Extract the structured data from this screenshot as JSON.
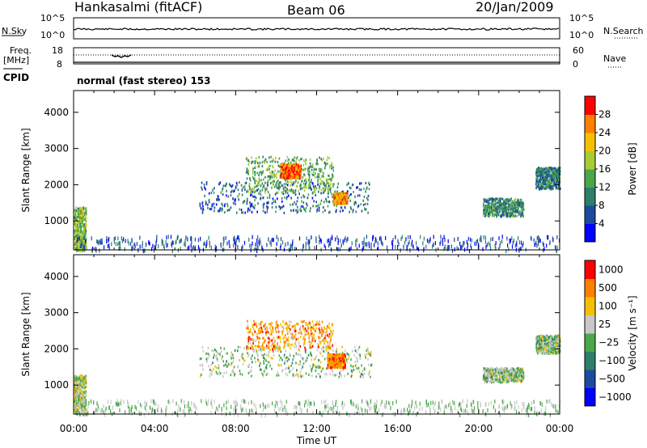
{
  "header": {
    "radar": "Hankasalmi (fitACF)",
    "beam": "Beam 06",
    "date": "20/Jan/2009",
    "program": "normal (fast stereo) 153"
  },
  "params": {
    "nsky_label": "N.Sky",
    "nsearch_label": "N.Search",
    "freq_label_1": "Freq.",
    "freq_label_2": "[MHz]",
    "nave_label": "Nave",
    "cpid_label": "CPID",
    "left_top_tick": "10^5",
    "left_bottom_tick": "10^0",
    "right_top_tick": "10^5",
    "right_bottom_tick": "10^0",
    "freq_top_tick": "18",
    "freq_bottom_tick": "8",
    "nave_top_tick": "60",
    "nave_bottom_tick": "0"
  },
  "chart_data": [
    {
      "type": "heatmap",
      "name": "power",
      "ylabel": "Slant Range [km]",
      "yticks": [
        "1000",
        "2000",
        "3000",
        "4000"
      ],
      "ylim": [
        200,
        4600
      ],
      "xlim": [
        0,
        24
      ],
      "colorbar": {
        "label": "Power [dB]",
        "ticks": [
          "4",
          "8",
          "12",
          "16",
          "20",
          "24",
          "28"
        ],
        "range": [
          0,
          30
        ],
        "colors": [
          "#0000ff",
          "#1d4aa0",
          "#2e7f6a",
          "#4aa84a",
          "#a8cc33",
          "#f5c000",
          "#ff8000",
          "#ff0000"
        ]
      },
      "regions": [
        {
          "t0": 6.2,
          "t1": 14.7,
          "r0": 1250,
          "r1": 2100,
          "level": 0.25
        },
        {
          "t0": 8.5,
          "t1": 12.8,
          "r0": 1800,
          "r1": 2800,
          "level": 0.45
        },
        {
          "t0": 10.2,
          "t1": 11.2,
          "r0": 2200,
          "r1": 2600,
          "level": 0.85
        },
        {
          "t0": 12.8,
          "t1": 13.5,
          "r0": 1500,
          "r1": 1800,
          "level": 0.75
        },
        {
          "t0": 20.2,
          "t1": 22.2,
          "r0": 1150,
          "r1": 1650,
          "level": 0.35
        },
        {
          "t0": 22.8,
          "t1": 24.0,
          "r0": 1900,
          "r1": 2500,
          "level": 0.3
        },
        {
          "t0": 0.0,
          "t1": 0.6,
          "r0": 200,
          "r1": 1400,
          "level": 0.5
        }
      ]
    },
    {
      "type": "heatmap",
      "name": "velocity",
      "ylabel": "Slant Range [km]",
      "yticks": [
        "1000",
        "2000",
        "3000",
        "4000"
      ],
      "xlabel": "Time UT",
      "xticks": [
        "00:00",
        "04:00",
        "08:00",
        "12:00",
        "16:00",
        "20:00",
        "00:00"
      ],
      "ylim": [
        200,
        4600
      ],
      "xlim": [
        0,
        24
      ],
      "colorbar": {
        "label": "Velocity [m s⁻¹]",
        "ticks": [
          "1000",
          "500",
          "100",
          "25",
          "−25",
          "−100",
          "−500",
          "−1000"
        ],
        "colors": [
          "#0000ff",
          "#1d4aa0",
          "#2e7f6a",
          "#4aa84a",
          "#c8c8c8",
          "#f5c000",
          "#ff8000",
          "#ff0000"
        ]
      },
      "regions": [
        {
          "t0": 6.2,
          "t1": 14.7,
          "r0": 1250,
          "r1": 2100,
          "level": 0.5
        },
        {
          "t0": 8.5,
          "t1": 12.8,
          "r0": 2000,
          "r1": 2800,
          "level": 0.75
        },
        {
          "t0": 12.5,
          "t1": 13.4,
          "r0": 1500,
          "r1": 1900,
          "level": 0.8
        },
        {
          "t0": 20.2,
          "t1": 22.2,
          "r0": 1100,
          "r1": 1500,
          "level": 0.5
        },
        {
          "t0": 22.8,
          "t1": 24.0,
          "r0": 1900,
          "r1": 2400,
          "level": 0.5
        },
        {
          "t0": 0.0,
          "t1": 0.6,
          "r0": 200,
          "r1": 1300,
          "level": 0.55
        }
      ]
    }
  ]
}
